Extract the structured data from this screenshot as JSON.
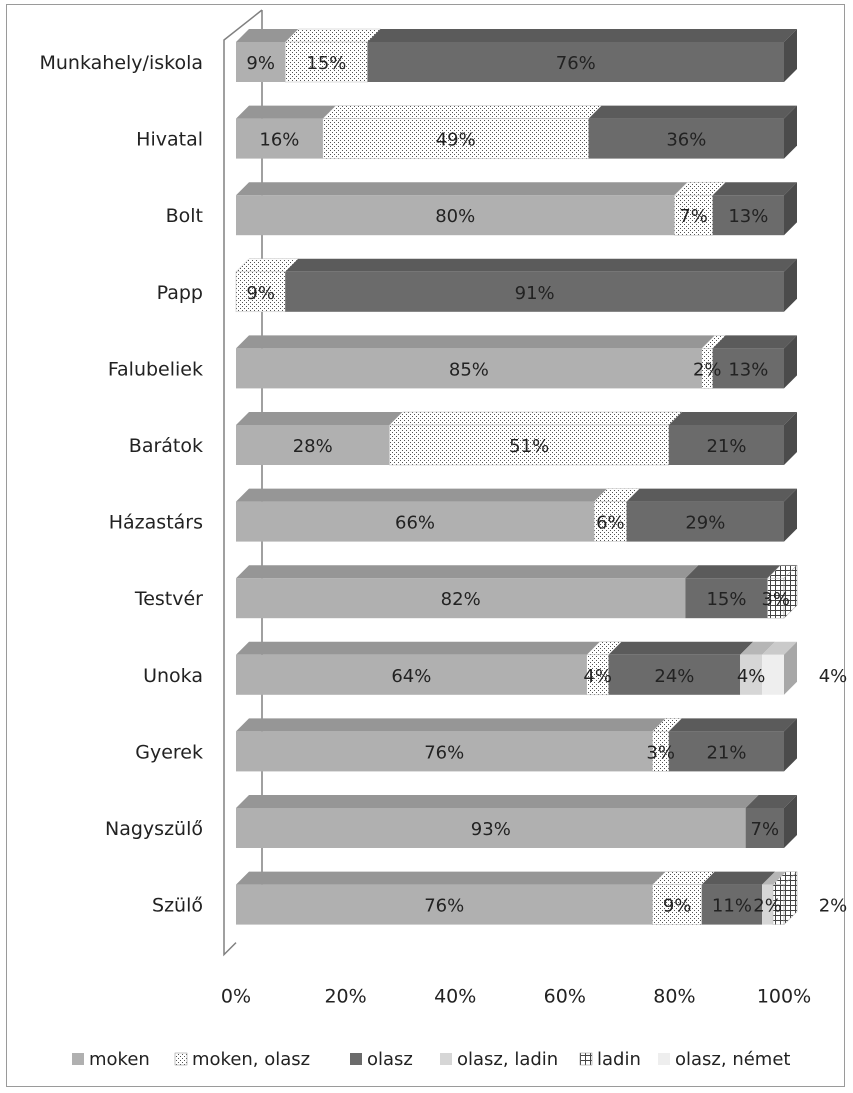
{
  "chart_data": {
    "type": "bar",
    "orientation": "horizontal",
    "stacked": "100%",
    "style": "3d",
    "categories": [
      "Munkahely/iskola",
      "Hivatal",
      "Bolt",
      "Papp",
      "Falubeliek",
      "Barátok",
      "Házastárs",
      "Testvér",
      "Unoka",
      "Gyerek",
      "Nagyszülő",
      "Szülő"
    ],
    "series": [
      {
        "name": "moken",
        "pattern": "solid",
        "color": "#b0b0b0",
        "values": [
          9,
          16,
          80,
          0,
          85,
          28,
          66,
          82,
          64,
          76,
          93,
          76
        ],
        "labels": [
          "9%",
          "16%",
          "80%",
          "",
          "85%",
          "28%",
          "66%",
          "82%",
          "64%",
          "76%",
          "93%",
          "76%"
        ]
      },
      {
        "name": "moken, olasz",
        "pattern": "dots",
        "color": "#ffffff",
        "values": [
          15,
          49,
          7,
          9,
          2,
          51,
          6,
          0,
          4,
          3,
          0,
          9
        ],
        "labels": [
          "15%",
          "49%",
          "7%",
          "9%",
          "2%",
          "51%",
          "6%",
          "",
          "4%",
          "3%",
          "",
          "9%"
        ]
      },
      {
        "name": "olasz",
        "pattern": "solid",
        "color": "#6b6b6b",
        "values": [
          76,
          36,
          13,
          91,
          13,
          21,
          29,
          15,
          24,
          21,
          7,
          11
        ],
        "labels": [
          "76%",
          "36%",
          "13%",
          "91%",
          "13%",
          "21%",
          "29%",
          "15%",
          "24%",
          "21%",
          "7%",
          "11%"
        ]
      },
      {
        "name": "olasz, ladin",
        "pattern": "solid",
        "color": "#d6d6d6",
        "values": [
          0,
          0,
          0,
          0,
          0,
          0,
          0,
          0,
          4,
          0,
          0,
          2
        ],
        "labels": [
          "",
          "",
          "",
          "",
          "",
          "",
          "",
          "",
          "4%",
          "",
          "",
          "2%"
        ]
      },
      {
        "name": "ladin",
        "pattern": "grid",
        "color": "#ffffff",
        "values": [
          0,
          0,
          0,
          0,
          0,
          0,
          0,
          3,
          0,
          0,
          0,
          2
        ],
        "labels": [
          "",
          "",
          "",
          "",
          "",
          "",
          "",
          "3%",
          "",
          "",
          "",
          "2%"
        ]
      },
      {
        "name": "olasz, német",
        "pattern": "solid",
        "color": "#eeeeee",
        "values": [
          0,
          0,
          0,
          0,
          0,
          0,
          0,
          0,
          4,
          0,
          0,
          0
        ],
        "labels": [
          "",
          "",
          "",
          "",
          "",
          "",
          "",
          "",
          "4%",
          "",
          "",
          ""
        ]
      }
    ],
    "x_ticks": [
      "0%",
      "20%",
      "40%",
      "60%",
      "80%",
      "100%"
    ],
    "xlim": [
      0,
      100
    ],
    "grid": false,
    "legend_position": "bottom",
    "title": "",
    "xlabel": "",
    "ylabel": ""
  }
}
